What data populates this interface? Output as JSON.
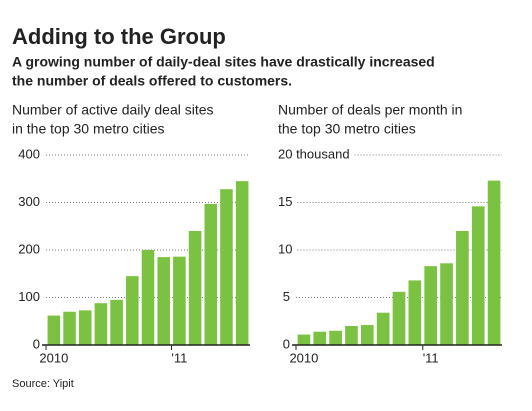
{
  "title": "Adding to the Group",
  "subtitle": [
    "A growing number of daily-deal sites have drastically increased",
    "the number of deals offered to customers."
  ],
  "source": "Source: Yipit",
  "chart_data": [
    {
      "type": "bar",
      "title": [
        "Number of active daily deal sites",
        "in the top 30 metro cities"
      ],
      "categories": [
        "2010",
        null,
        null,
        null,
        null,
        null,
        null,
        null,
        "'11",
        null,
        null,
        null,
        null
      ],
      "values": [
        62,
        70,
        73,
        88,
        95,
        145,
        200,
        185,
        186,
        240,
        297,
        328,
        345
      ],
      "color": "#7cc242",
      "ylim": [
        0,
        400
      ],
      "yticks": [
        0,
        100,
        200,
        300,
        400
      ],
      "grid": true
    },
    {
      "type": "bar",
      "title": [
        "Number of deals per month in",
        "the top 30 metro cities"
      ],
      "categories": [
        "2010",
        null,
        null,
        null,
        null,
        null,
        null,
        null,
        "'11",
        null,
        null,
        null,
        null
      ],
      "values": [
        1.1,
        1.4,
        1.5,
        2.0,
        2.1,
        3.4,
        5.6,
        6.8,
        8.3,
        8.6,
        12.0,
        14.6,
        17.3
      ],
      "color": "#7cc242",
      "ylim": [
        0,
        20
      ],
      "yticks": [
        0,
        5,
        10,
        15,
        {
          "value": 20,
          "label": "20 thousand"
        }
      ],
      "grid": true
    }
  ]
}
